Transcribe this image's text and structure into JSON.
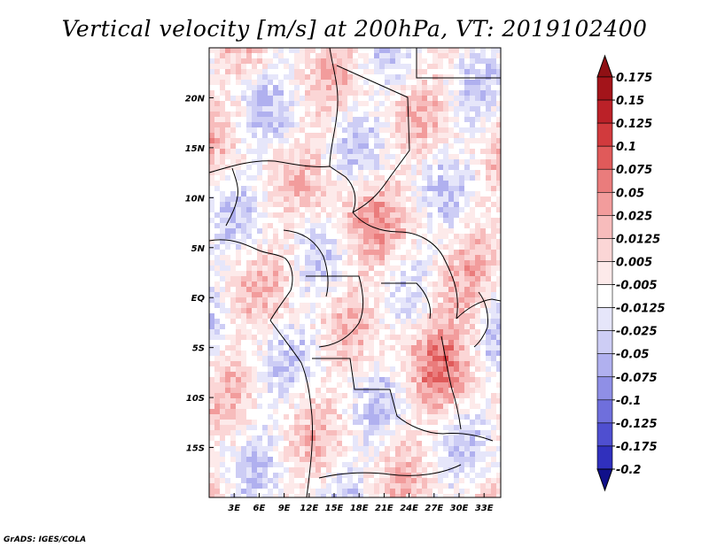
{
  "chart_data": {
    "type": "heatmap",
    "title": "Vertical velocity [m/s] at 200hPa, VT: 2019102400",
    "variable": "Vertical velocity",
    "units": "m/s",
    "level": "200hPa",
    "valid_time": "2019102400",
    "x_ticks": [
      "3E",
      "6E",
      "9E",
      "12E",
      "15E",
      "18E",
      "21E",
      "24E",
      "27E",
      "30E",
      "33E"
    ],
    "y_ticks": [
      "20N",
      "15N",
      "10N",
      "5N",
      "EQ",
      "5S",
      "10S",
      "15S"
    ],
    "x_tick_values": [
      3,
      6,
      9,
      12,
      15,
      18,
      21,
      24,
      27,
      30,
      33
    ],
    "y_tick_values": [
      20,
      15,
      10,
      5,
      0,
      -5,
      -10,
      -15
    ],
    "xlim": [
      0,
      35
    ],
    "ylim": [
      -20,
      25
    ],
    "colorbar": {
      "levels": [
        {
          "label": "0.175",
          "color": "#a3141a"
        },
        {
          "label": "0.15",
          "color": "#bb2128"
        },
        {
          "label": "0.125",
          "color": "#d13a3d"
        },
        {
          "label": "0.1",
          "color": "#e05a5a"
        },
        {
          "label": "0.075",
          "color": "#ea7c7c"
        },
        {
          "label": "0.05",
          "color": "#f29c9c"
        },
        {
          "label": "0.025",
          "color": "#f7bcbc"
        },
        {
          "label": "0.0125",
          "color": "#fbd6d6"
        },
        {
          "label": "0.005",
          "color": "#fdeaea"
        },
        {
          "label": "-0.005",
          "color": "#ffffff"
        },
        {
          "label": "-0.0125",
          "color": "#e6e6fa"
        },
        {
          "label": "-0.025",
          "color": "#cdcdf5"
        },
        {
          "label": "-0.05",
          "color": "#b0b0ef"
        },
        {
          "label": "-0.075",
          "color": "#8f8fe6"
        },
        {
          "label": "-0.1",
          "color": "#6f6fdc"
        },
        {
          "label": "-0.125",
          "color": "#4f4fd0"
        },
        {
          "label": "-0.175",
          "color": "#3030bd"
        },
        {
          "label": "-0.2",
          "color": "#1a1aa3"
        }
      ],
      "top_arrow_color": "#8f1014",
      "bottom_arrow_color": "#10108a"
    }
  },
  "footer": "GrADS: IGES/COLA"
}
